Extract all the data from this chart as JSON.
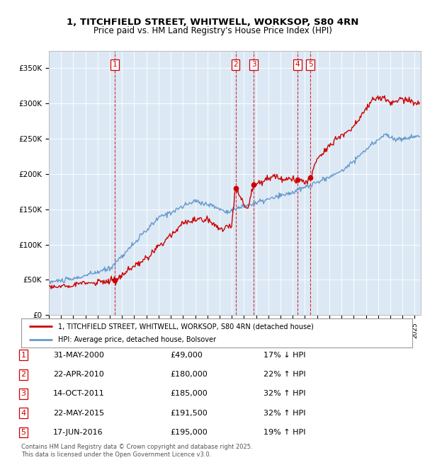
{
  "title_line1": "1, TITCHFIELD STREET, WHITWELL, WORKSOP, S80 4RN",
  "title_line2": "Price paid vs. HM Land Registry's House Price Index (HPI)",
  "fig_bg_color": "#ffffff",
  "plot_bg_color": "#dce9f5",
  "red_line_label": "1, TITCHFIELD STREET, WHITWELL, WORKSOP, S80 4RN (detached house)",
  "blue_line_label": "HPI: Average price, detached house, Bolsover",
  "transactions": [
    {
      "num": 1,
      "date": "31-MAY-2000",
      "year": 2000.41,
      "price": 49000,
      "pct": "17% ↓ HPI"
    },
    {
      "num": 2,
      "date": "22-APR-2010",
      "year": 2010.31,
      "price": 180000,
      "pct": "22% ↑ HPI"
    },
    {
      "num": 3,
      "date": "14-OCT-2011",
      "year": 2011.79,
      "price": 185000,
      "pct": "32% ↑ HPI"
    },
    {
      "num": 4,
      "date": "22-MAY-2015",
      "year": 2015.39,
      "price": 191500,
      "pct": "32% ↑ HPI"
    },
    {
      "num": 5,
      "date": "17-JUN-2016",
      "year": 2016.46,
      "price": 195000,
      "pct": "19% ↑ HPI"
    }
  ],
  "copyright_text": "Contains HM Land Registry data © Crown copyright and database right 2025.\nThis data is licensed under the Open Government Licence v3.0.",
  "ylim": [
    0,
    375000
  ],
  "xlim_start": 1995.0,
  "xlim_end": 2025.5,
  "yticks": [
    0,
    50000,
    100000,
    150000,
    200000,
    250000,
    300000,
    350000
  ],
  "ylabels": [
    "£0",
    "£50K",
    "£100K",
    "£150K",
    "£200K",
    "£250K",
    "£300K",
    "£350K"
  ]
}
